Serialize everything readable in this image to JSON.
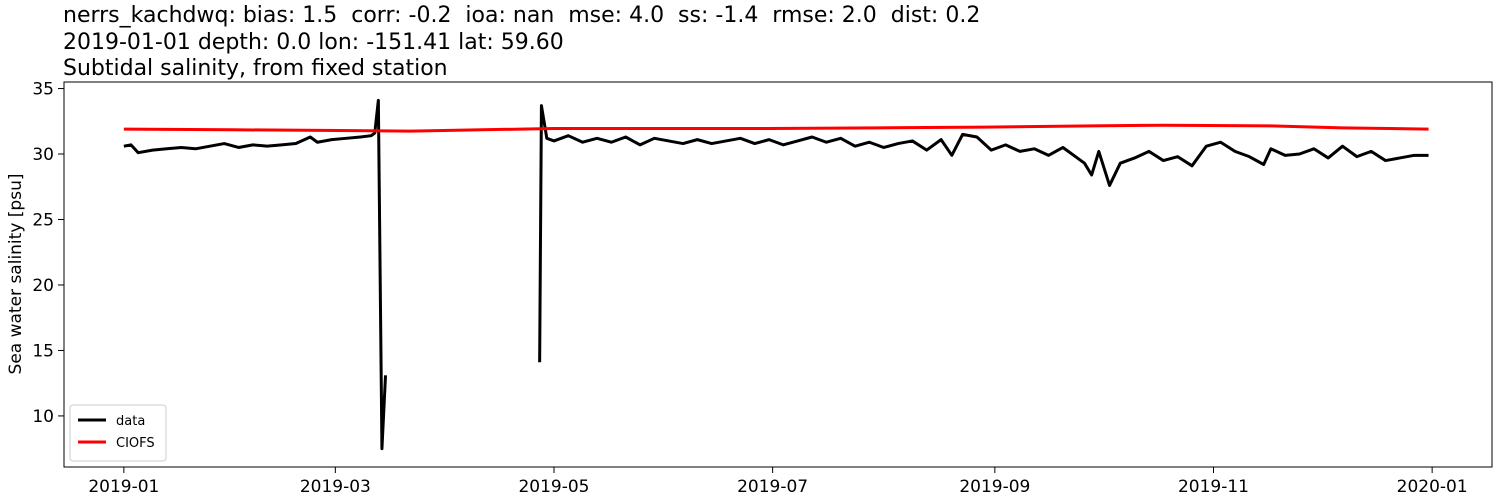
{
  "chart_data": {
    "type": "line",
    "title": [
      "nerrs_kachdwq: bias: 1.5  corr: -0.2  ioa: nan  mse: 4.0  ss: -1.4  rmse: 2.0  dist: 0.2",
      "2019-01-01 depth: 0.0 lon: -151.41 lat: 59.60",
      "Subtidal salinity, from fixed station"
    ],
    "ylabel": "Sea water salinity [psu]",
    "xlim": [
      -16.7,
      381.7
    ],
    "xticks": [
      {
        "value": 0,
        "label": "2019-01"
      },
      {
        "value": 59,
        "label": "2019-03"
      },
      {
        "value": 120,
        "label": "2019-05"
      },
      {
        "value": 181,
        "label": "2019-07"
      },
      {
        "value": 243,
        "label": "2019-09"
      },
      {
        "value": 304,
        "label": "2019-11"
      },
      {
        "value": 365,
        "label": "2020-01"
      }
    ],
    "ylim": [
      6.1,
      35.5
    ],
    "yticks": [
      10,
      15,
      20,
      25,
      30,
      35
    ],
    "grid": false,
    "legend": "lower left",
    "series": [
      {
        "name": "data",
        "color": "#000000",
        "x": [
          0,
          2,
          4,
          8,
          12,
          16,
          20,
          24,
          28,
          32,
          36,
          40,
          44,
          48,
          52,
          54,
          58,
          62,
          66,
          69,
          70,
          71,
          72,
          73,
          95,
          116,
          116.5,
          118,
          120,
          124,
          128,
          132,
          136,
          140,
          144,
          148,
          152,
          156,
          160,
          164,
          168,
          172,
          176,
          180,
          184,
          188,
          192,
          196,
          200,
          204,
          208,
          212,
          216,
          220,
          224,
          228,
          231,
          234,
          238,
          242,
          246,
          250,
          254,
          258,
          262,
          266,
          268,
          270,
          272,
          275,
          278,
          282,
          286,
          290,
          294,
          298,
          302,
          306,
          310,
          314,
          318,
          320,
          324,
          328,
          332,
          336,
          340,
          344,
          348,
          352,
          356,
          360,
          364
        ],
        "values": [
          30.6,
          30.7,
          30.1,
          30.3,
          30.4,
          30.5,
          30.4,
          30.6,
          30.8,
          30.5,
          30.7,
          30.6,
          30.7,
          30.8,
          31.3,
          30.9,
          31.1,
          31.2,
          31.3,
          31.4,
          31.6,
          34.1,
          7.5,
          13.1,
          null,
          14.1,
          33.7,
          31.2,
          31.0,
          31.4,
          30.9,
          31.2,
          30.9,
          31.3,
          30.7,
          31.2,
          31.0,
          30.8,
          31.1,
          30.8,
          31.0,
          31.2,
          30.8,
          31.1,
          30.7,
          31.0,
          31.3,
          30.9,
          31.2,
          30.6,
          30.9,
          30.5,
          30.8,
          31.0,
          30.3,
          31.1,
          29.9,
          31.5,
          31.3,
          30.3,
          30.7,
          30.2,
          30.4,
          29.9,
          30.5,
          29.7,
          29.3,
          28.4,
          30.2,
          27.6,
          29.3,
          29.7,
          30.2,
          29.5,
          29.8,
          29.1,
          30.6,
          30.9,
          30.2,
          29.8,
          29.2,
          30.4,
          29.9,
          30.0,
          30.4,
          29.7,
          30.6,
          29.8,
          30.2,
          29.5,
          29.7,
          29.9,
          29.9
        ]
      },
      {
        "name": "CIOFS",
        "color": "#ff0000",
        "x": [
          0,
          30,
          60,
          80,
          100,
          120,
          150,
          180,
          210,
          240,
          270,
          290,
          320,
          340,
          364
        ],
        "values": [
          31.9,
          31.85,
          31.8,
          31.75,
          31.85,
          31.95,
          31.95,
          31.95,
          32.0,
          32.05,
          32.15,
          32.2,
          32.15,
          32.0,
          31.9
        ]
      }
    ]
  }
}
